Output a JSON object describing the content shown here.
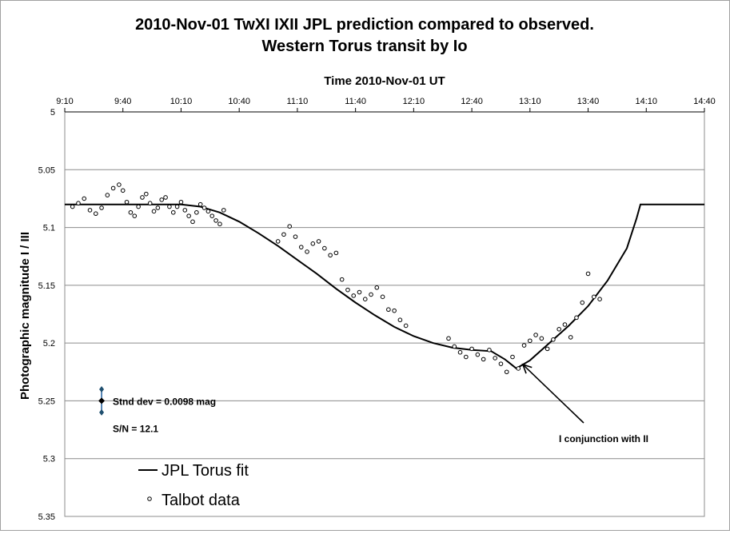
{
  "chart_data": {
    "type": "scatter",
    "title": "2010-Nov-01 TwXI IXII JPL prediction compared to observed.",
    "subtitle": "Western Torus transit by Io",
    "xlabel": "Time  2010-Nov-01 UT",
    "ylabel": "Photographic magnitude I / III",
    "x_axis_position": "top",
    "y_reversed": true,
    "xlim": [
      "9:10",
      "14:40"
    ],
    "ylim": [
      5.0,
      5.35
    ],
    "x_ticks": [
      "9:10",
      "9:40",
      "10:10",
      "10:40",
      "11:10",
      "11:40",
      "12:10",
      "12:40",
      "13:10",
      "13:40",
      "14:10",
      "14:40"
    ],
    "y_ticks": [
      "5",
      "5.05",
      "5.1",
      "5.15",
      "5.2",
      "5.25",
      "5.3",
      "5.35"
    ],
    "grid": "horizontal",
    "legend": "bottom-left",
    "series": [
      {
        "name": "JPL Torus fit",
        "style": "line",
        "color": "#000000",
        "x": [
          "9:10",
          "10:10",
          "10:20",
          "10:30",
          "10:40",
          "10:50",
          "11:00",
          "11:10",
          "11:20",
          "11:30",
          "11:40",
          "11:50",
          "12:00",
          "12:10",
          "12:20",
          "12:30",
          "12:40",
          "12:50",
          "12:57",
          "13:03",
          "13:10",
          "13:20",
          "13:30",
          "13:40",
          "13:50",
          "14:00",
          "14:05",
          "14:07",
          "14:10",
          "14:40"
        ],
        "y": [
          5.08,
          5.08,
          5.082,
          5.087,
          5.095,
          5.105,
          5.116,
          5.128,
          5.14,
          5.153,
          5.165,
          5.176,
          5.186,
          5.194,
          5.2,
          5.204,
          5.206,
          5.207,
          5.214,
          5.222,
          5.215,
          5.2,
          5.185,
          5.168,
          5.146,
          5.118,
          5.092,
          5.08,
          5.08,
          5.08
        ]
      },
      {
        "name": "Talbot data",
        "style": "markers",
        "marker": "open-circle",
        "x": [
          "9:14",
          "9:17",
          "9:20",
          "9:23",
          "9:26",
          "9:29",
          "9:32",
          "9:35",
          "9:38",
          "9:40",
          "9:42",
          "9:44",
          "9:46",
          "9:48",
          "9:50",
          "9:52",
          "9:54",
          "9:56",
          "9:58",
          "10:00",
          "10:02",
          "10:04",
          "10:06",
          "10:08",
          "10:10",
          "10:12",
          "10:14",
          "10:16",
          "10:18",
          "10:20",
          "10:22",
          "10:24",
          "10:26",
          "10:28",
          "10:30",
          "10:32",
          "11:00",
          "11:03",
          "11:06",
          "11:09",
          "11:12",
          "11:15",
          "11:18",
          "11:21",
          "11:24",
          "11:27",
          "11:30",
          "11:33",
          "11:36",
          "11:39",
          "11:42",
          "11:45",
          "11:48",
          "11:51",
          "11:54",
          "11:57",
          "12:00",
          "12:03",
          "12:06",
          "12:28",
          "12:31",
          "12:34",
          "12:37",
          "12:40",
          "12:43",
          "12:46",
          "12:49",
          "12:52",
          "12:55",
          "12:58",
          "13:01",
          "13:04",
          "13:07",
          "13:10",
          "13:13",
          "13:16",
          "13:19",
          "13:22",
          "13:25",
          "13:28",
          "13:31",
          "13:34",
          "13:37",
          "13:40",
          "13:43",
          "13:46"
        ],
        "y": [
          5.082,
          5.079,
          5.075,
          5.085,
          5.088,
          5.083,
          5.072,
          5.066,
          5.063,
          5.068,
          5.078,
          5.087,
          5.09,
          5.082,
          5.074,
          5.071,
          5.079,
          5.086,
          5.083,
          5.076,
          5.074,
          5.082,
          5.087,
          5.082,
          5.078,
          5.085,
          5.09,
          5.095,
          5.087,
          5.08,
          5.083,
          5.086,
          5.09,
          5.094,
          5.097,
          5.085,
          5.112,
          5.106,
          5.099,
          5.108,
          5.117,
          5.121,
          5.114,
          5.112,
          5.118,
          5.124,
          5.122,
          5.145,
          5.154,
          5.159,
          5.156,
          5.162,
          5.158,
          5.152,
          5.16,
          5.171,
          5.172,
          5.18,
          5.185,
          5.196,
          5.203,
          5.208,
          5.212,
          5.205,
          5.21,
          5.214,
          5.206,
          5.213,
          5.218,
          5.225,
          5.212,
          5.222,
          5.202,
          5.198,
          5.193,
          5.196,
          5.205,
          5.197,
          5.188,
          5.184,
          5.195,
          5.178,
          5.165,
          5.14,
          5.16,
          5.162
        ]
      }
    ],
    "error_bar": {
      "x": "9:29",
      "y": 5.25,
      "low": 5.24,
      "high": 5.26
    },
    "annotations": [
      {
        "text": "Stnd dev = 0.0098 mag"
      },
      {
        "text": "S/N = 12.1"
      },
      {
        "text": "I conjunction with II",
        "arrow_to": {
          "x": "13:03",
          "y": 5.222
        }
      }
    ]
  }
}
